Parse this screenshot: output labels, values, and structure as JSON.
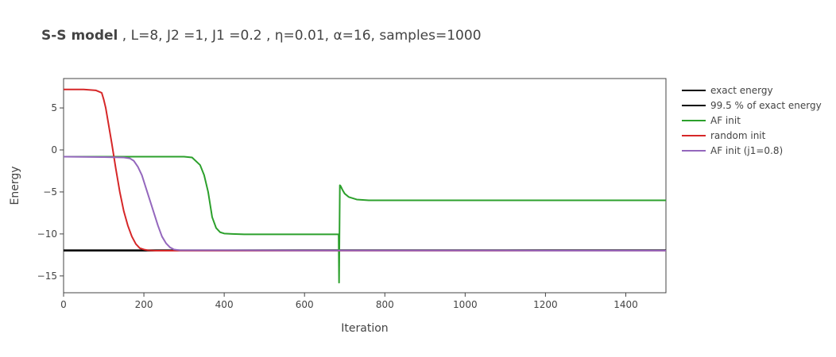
{
  "chart_data": {
    "type": "line",
    "title_bold": "S-S model",
    "title_rest": " , L=8, J2 =1, J1 =0.2 , η=0.01, α=16, samples=1000",
    "xlabel": "Iteration",
    "ylabel": "Energy",
    "xlim": [
      0,
      1500
    ],
    "ylim": [
      -17,
      8.5
    ],
    "xticks": [
      0,
      200,
      400,
      600,
      800,
      1000,
      1200,
      1400
    ],
    "yticks": [
      5,
      0,
      -5,
      -10,
      -15
    ],
    "grid": false,
    "legend_position": "right",
    "series": [
      {
        "name": "exact energy",
        "color": "#000000",
        "x": [
          0,
          1500
        ],
        "y": [
          -12.0,
          -12.0
        ]
      },
      {
        "name": "99.5 % of exact energy",
        "color": "#000000",
        "x": [
          0,
          1500
        ],
        "y": [
          -11.94,
          -11.94
        ]
      },
      {
        "name": "AF init",
        "color": "#2ca02c",
        "x": [
          0,
          100,
          200,
          300,
          320,
          340,
          350,
          360,
          365,
          370,
          380,
          390,
          400,
          420,
          450,
          500,
          600,
          685,
          686,
          688,
          690,
          695,
          700,
          710,
          730,
          760,
          800,
          1000,
          1200,
          1500
        ],
        "y": [
          -0.8,
          -0.8,
          -0.8,
          -0.8,
          -0.9,
          -1.8,
          -3.0,
          -5.0,
          -6.5,
          -8.0,
          -9.3,
          -9.8,
          -9.95,
          -10.0,
          -10.05,
          -10.05,
          -10.05,
          -10.05,
          -15.8,
          -4.2,
          -4.3,
          -4.8,
          -5.2,
          -5.6,
          -5.9,
          -6.0,
          -6.0,
          -6.0,
          -6.0,
          -6.0
        ]
      },
      {
        "name": "random init",
        "color": "#d62728",
        "x": [
          0,
          50,
          80,
          95,
          100,
          105,
          110,
          115,
          120,
          125,
          130,
          135,
          140,
          150,
          160,
          170,
          180,
          190,
          200,
          210,
          230,
          280,
          1500
        ],
        "y": [
          7.2,
          7.2,
          7.1,
          6.8,
          6.0,
          5.0,
          3.6,
          2.2,
          0.8,
          -0.7,
          -2.2,
          -3.6,
          -5.0,
          -7.3,
          -9.0,
          -10.3,
          -11.2,
          -11.7,
          -11.85,
          -11.95,
          -12.0,
          -12.0,
          -12.0
        ]
      },
      {
        "name": "AF init (j1=0.8)",
        "color": "#9467bd",
        "x": [
          0,
          100,
          150,
          165,
          175,
          185,
          195,
          205,
          215,
          225,
          235,
          245,
          255,
          265,
          275,
          290,
          320,
          400,
          600,
          800,
          1000,
          1200,
          1500
        ],
        "y": [
          -0.8,
          -0.85,
          -0.9,
          -1.0,
          -1.3,
          -2.0,
          -3.0,
          -4.5,
          -6.0,
          -7.5,
          -9.0,
          -10.3,
          -11.1,
          -11.6,
          -11.85,
          -11.95,
          -11.95,
          -11.95,
          -11.97,
          -11.97,
          -11.97,
          -11.98,
          -11.98
        ]
      }
    ]
  }
}
